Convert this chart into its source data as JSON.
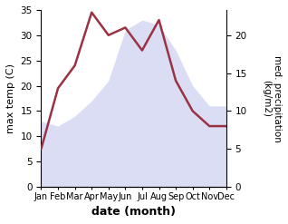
{
  "months": [
    "Jan",
    "Feb",
    "Mar",
    "Apr",
    "May",
    "Jun",
    "Jul",
    "Aug",
    "Sep",
    "Oct",
    "Nov",
    "Dec"
  ],
  "temperature": [
    13,
    12,
    14,
    17,
    21,
    31,
    33,
    32,
    27,
    20,
    16,
    16
  ],
  "precipitation": [
    5,
    13,
    16,
    23,
    20,
    21,
    18,
    22,
    14,
    10,
    8,
    8
  ],
  "precip_color": "#993344",
  "fill_color": "#c8ccf0",
  "xlabel": "date (month)",
  "ylabel_left": "max temp (C)",
  "ylabel_right": "med. precipitation\n(kg/m2)",
  "ylim_left": [
    0,
    35
  ],
  "ylim_right": [
    0,
    23.33
  ],
  "fill_alpha": 0.65
}
